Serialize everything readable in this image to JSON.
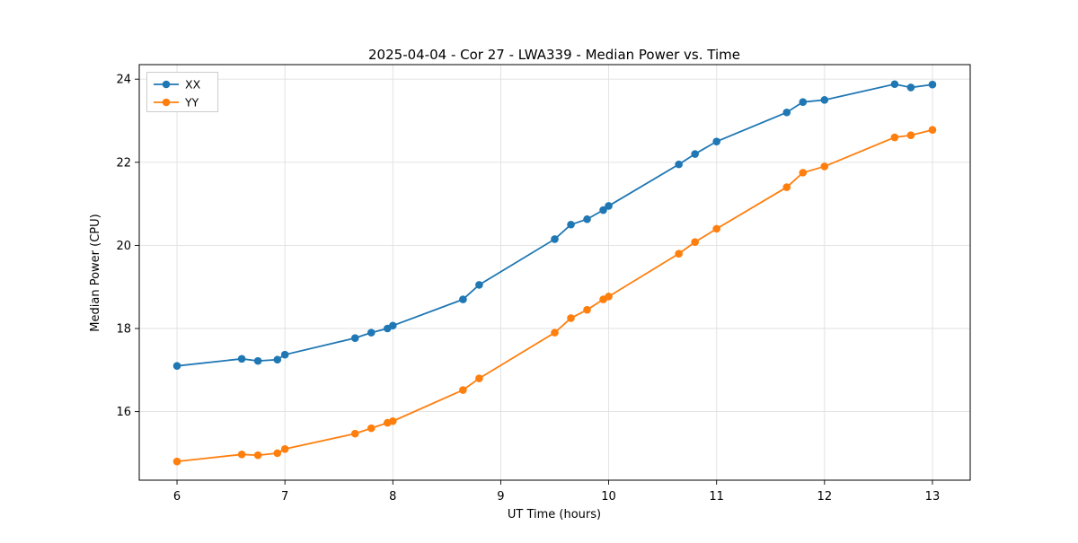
{
  "chart_data": {
    "type": "line",
    "title": "2025-04-04 - Cor 27 - LWA339 - Median Power vs. Time",
    "xlabel": "UT Time (hours)",
    "ylabel": "Median Power (CPU)",
    "xlim": [
      5.65,
      13.35
    ],
    "ylim": [
      14.35,
      24.35
    ],
    "xticks": [
      6,
      7,
      8,
      9,
      10,
      11,
      12,
      13
    ],
    "yticks": [
      16,
      18,
      20,
      22,
      24
    ],
    "grid": true,
    "legend_position": "upper-left",
    "x": [
      6.0,
      6.6,
      6.75,
      6.93,
      7.0,
      7.65,
      7.8,
      7.95,
      8.0,
      8.65,
      8.8,
      9.5,
      9.65,
      9.8,
      9.95,
      10.0,
      10.65,
      10.8,
      11.0,
      11.65,
      11.8,
      12.0,
      12.65,
      12.8,
      13.0
    ],
    "series": [
      {
        "name": "XX",
        "color": "#1f77b4",
        "values": [
          17.1,
          17.27,
          17.22,
          17.25,
          17.37,
          17.77,
          17.9,
          18.0,
          18.07,
          18.7,
          19.05,
          20.15,
          20.5,
          20.63,
          20.85,
          20.95,
          21.95,
          22.2,
          22.5,
          23.2,
          23.45,
          23.5,
          23.88,
          23.8,
          23.87
        ]
      },
      {
        "name": "YY",
        "color": "#ff7f0e",
        "values": [
          14.8,
          14.97,
          14.95,
          15.0,
          15.1,
          15.47,
          15.6,
          15.73,
          15.77,
          16.52,
          16.8,
          17.9,
          18.25,
          18.45,
          18.7,
          18.77,
          19.8,
          20.08,
          20.4,
          21.4,
          21.75,
          21.9,
          22.6,
          22.65,
          22.78
        ]
      }
    ]
  }
}
